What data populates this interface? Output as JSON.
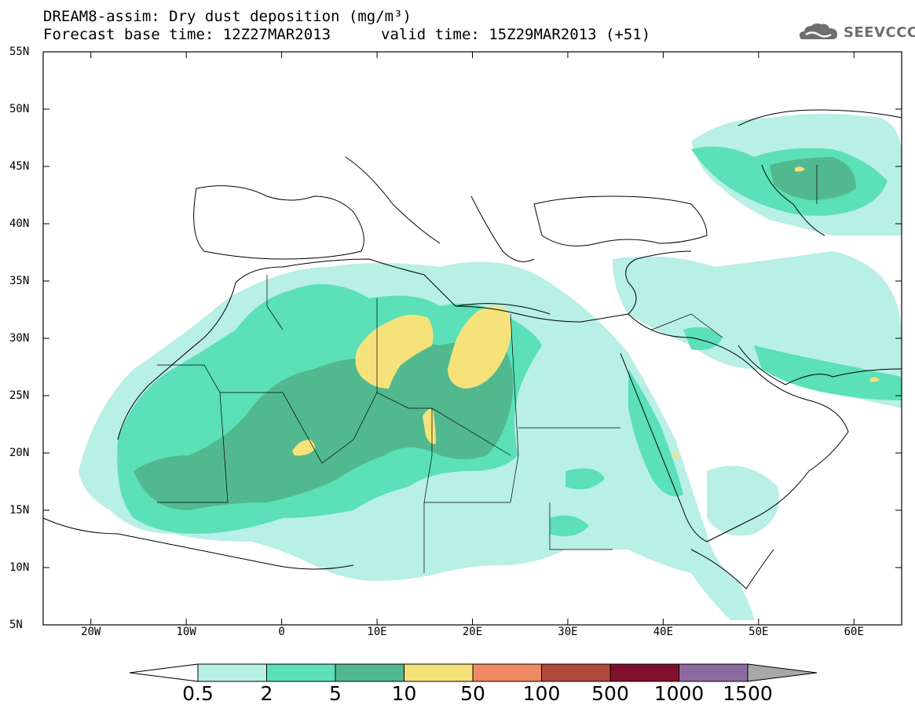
{
  "title": {
    "line1": "DREAM8-assim: Dry dust deposition (mg/m³)",
    "line2": "Forecast base time: 12Z27MAR2013",
    "valid": "valid time: 15Z29MAR2013 (+51)"
  },
  "logo": {
    "text": "SEEVCCC",
    "icon": "cloud-logo-icon",
    "color": "#6e6e6e"
  },
  "map": {
    "lat_labels": [
      "55N",
      "50N",
      "45N",
      "40N",
      "35N",
      "30N",
      "25N",
      "20N",
      "15N",
      "10N",
      "5N"
    ],
    "lon_labels": [
      "20W",
      "10W",
      "0",
      "10E",
      "20E",
      "30E",
      "40E",
      "50E",
      "60E"
    ],
    "lat_range": [
      5,
      55
    ],
    "lon_range": [
      -25,
      65
    ]
  },
  "legend": {
    "labels": [
      "0.5",
      "2",
      "5",
      "10",
      "50",
      "100",
      "500",
      "1000",
      "1500"
    ],
    "colors": [
      "#ffffff",
      "#b8efe6",
      "#5be0b8",
      "#52b98f",
      "#f5e27a",
      "#ef8a62",
      "#b04a3c",
      "#80102c",
      "#8c6aa0",
      "#a8a8a8"
    ]
  }
}
